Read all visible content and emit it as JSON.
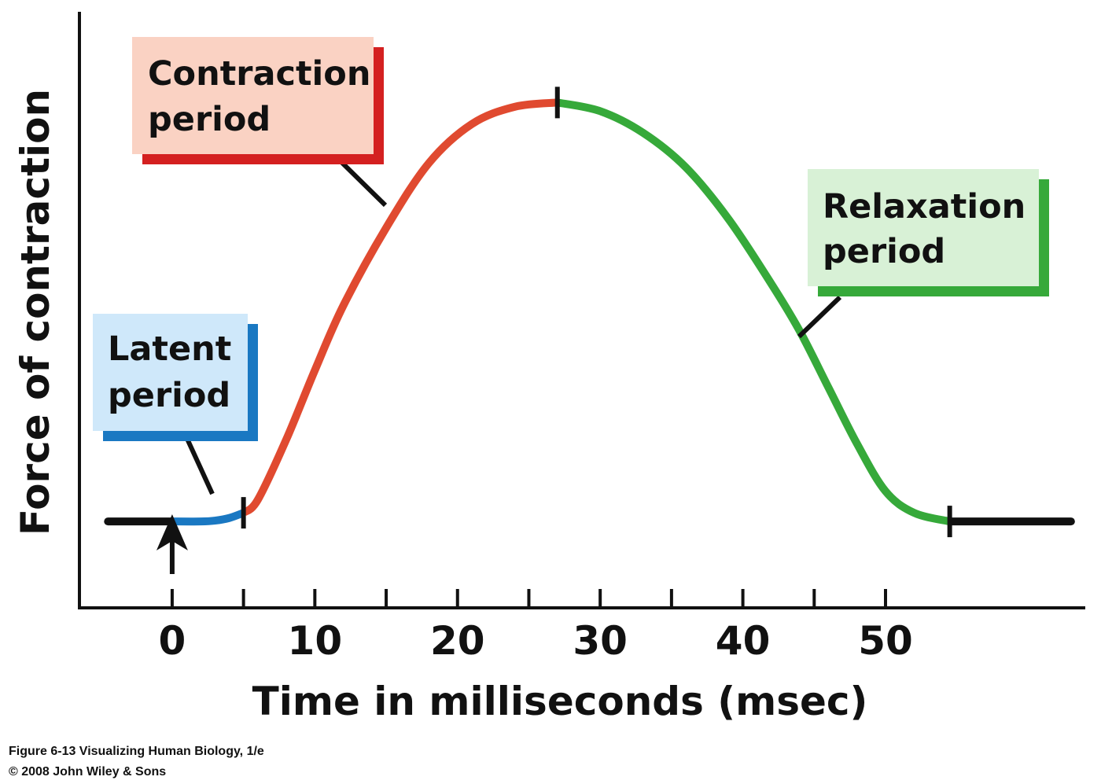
{
  "chart_data": {
    "type": "line",
    "xlabel": "Time in milliseconds (msec)",
    "ylabel": "Force of contraction",
    "xlim": [
      -6.5,
      64
    ],
    "ylim": [
      -1,
      5.9
    ],
    "grid": false,
    "xticks": [
      0,
      5,
      10,
      15,
      20,
      25,
      30,
      35,
      40,
      45,
      50
    ],
    "xtick_labels": [
      {
        "x": 0,
        "label": "0"
      },
      {
        "x": 10,
        "label": "10"
      },
      {
        "x": 20,
        "label": "20"
      },
      {
        "x": 30,
        "label": "30"
      },
      {
        "x": 40,
        "label": "40"
      },
      {
        "x": 50,
        "label": "50"
      }
    ],
    "stimulus_arrow_x": 0,
    "phase_boundaries": [
      5,
      27,
      54.5
    ],
    "series": [
      {
        "name": "Latent period",
        "color": "#1a78c2",
        "x": [
          0,
          2,
          3,
          4,
          5
        ],
        "y": [
          0,
          0,
          0.01,
          0.04,
          0.1
        ]
      },
      {
        "name": "Contraction period",
        "color": "#e04a30",
        "x": [
          5,
          6,
          8,
          10,
          12,
          15,
          18,
          21,
          24,
          27
        ],
        "y": [
          0.1,
          0.25,
          0.95,
          1.75,
          2.5,
          3.4,
          4.15,
          4.6,
          4.8,
          4.85
        ]
      },
      {
        "name": "Relaxation period",
        "color": "#36a93a",
        "x": [
          27,
          30,
          33,
          36,
          39,
          42,
          44,
          46,
          48,
          50,
          52,
          54.5
        ],
        "y": [
          4.85,
          4.75,
          4.5,
          4.1,
          3.5,
          2.75,
          2.2,
          1.55,
          0.9,
          0.35,
          0.1,
          0
        ]
      }
    ],
    "baseline_segments": [
      {
        "color": "#111111",
        "x": [
          -4.5,
          0
        ],
        "y": [
          0,
          0
        ]
      },
      {
        "color": "#111111",
        "x": [
          54.5,
          63
        ],
        "y": [
          0,
          0
        ]
      }
    ],
    "callouts": [
      {
        "lines": [
          "Latent",
          "period"
        ],
        "fill": "#cfe8fa",
        "shadow": "#1a78c2"
      },
      {
        "lines": [
          "Contraction",
          "period"
        ],
        "fill": "#fad2c3",
        "shadow": "#d42020"
      },
      {
        "lines": [
          "Relaxation",
          "period"
        ],
        "fill": "#d8f1d6",
        "shadow": "#36a93a"
      }
    ]
  },
  "caption": {
    "line1": "Figure 6-13  Visualizing Human Biology, 1/e",
    "line2": "© 2008 John Wiley & Sons"
  }
}
